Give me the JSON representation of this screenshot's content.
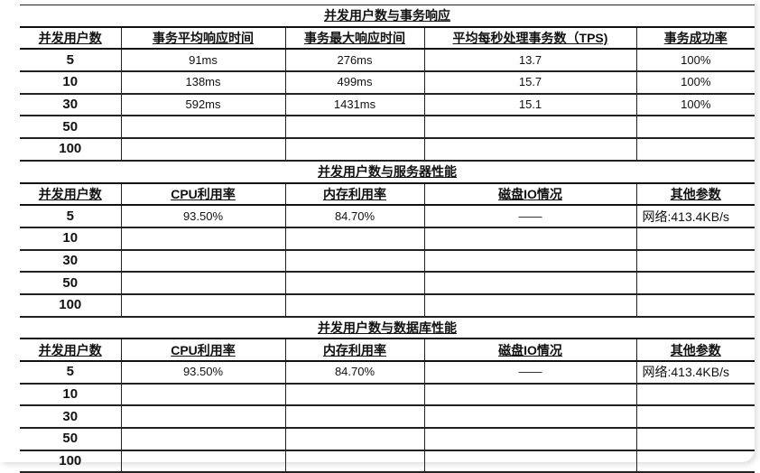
{
  "sections": [
    {
      "title": "并发用户数与事务响应",
      "headers": [
        "并发用户数",
        "事务平均响应时间",
        "事务最大响应时间",
        "平均每秒处理事务数（TPS)",
        "事务成功率"
      ],
      "rows": [
        [
          "5",
          "91ms",
          "276ms",
          "13.7",
          "100%"
        ],
        [
          "10",
          "138ms",
          "499ms",
          "15.7",
          "100%"
        ],
        [
          "30",
          "592ms",
          "1431ms",
          "15.1",
          "100%"
        ],
        [
          "50",
          "",
          "",
          "",
          ""
        ],
        [
          "100",
          "",
          "",
          "",
          ""
        ]
      ]
    },
    {
      "title": "并发用户数与服务器性能",
      "headers": [
        "并发用户数",
        "CPU利用率",
        "内存利用率",
        "磁盘IO情况",
        "其他参数"
      ],
      "rows": [
        [
          "5",
          "93.50%",
          "84.70%",
          "——",
          "网络:413.4KB/s"
        ],
        [
          "10",
          "",
          "",
          "",
          ""
        ],
        [
          "30",
          "",
          "",
          "",
          ""
        ],
        [
          "50",
          "",
          "",
          "",
          ""
        ],
        [
          "100",
          "",
          "",
          "",
          ""
        ]
      ]
    },
    {
      "title": "并发用户数与数据库性能",
      "headers": [
        "并发用户数",
        "CPU利用率",
        "内存利用率",
        "磁盘IO情况",
        "其他参数"
      ],
      "rows": [
        [
          "5",
          "93.50%",
          "84.70%",
          "——",
          "网络:413.4KB/s"
        ],
        [
          "10",
          "",
          "",
          "",
          ""
        ],
        [
          "30",
          "",
          "",
          "",
          ""
        ],
        [
          "50",
          "",
          "",
          "",
          ""
        ],
        [
          "100",
          "",
          "",
          "",
          ""
        ]
      ]
    }
  ]
}
